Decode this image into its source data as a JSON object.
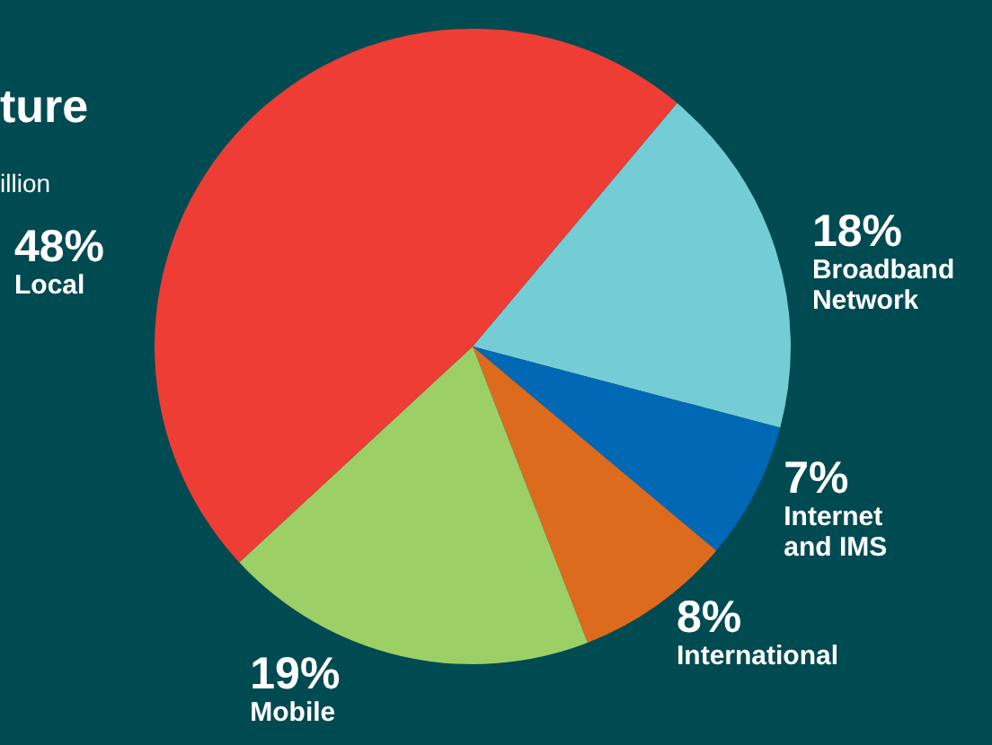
{
  "chart_data": {
    "type": "pie",
    "title": "ture",
    "subtitle": "illion",
    "categories": [
      "Broadband Network",
      "Internet and IMS",
      "International",
      "Mobile",
      "Local"
    ],
    "values": [
      18,
      7,
      8,
      19,
      48
    ],
    "colors": [
      "#74cdd4",
      "#0068b4",
      "#dd6b1e",
      "#9dcf67",
      "#ee3d35"
    ],
    "value_labels": [
      "18%",
      "7%",
      "8%",
      "19%",
      "48%"
    ],
    "legend": false
  }
}
